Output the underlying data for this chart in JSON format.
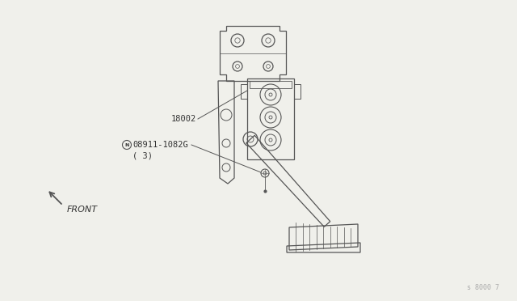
{
  "bg_color": "#f0f0eb",
  "line_color": "#555555",
  "text_color": "#333333",
  "part_label_1": "18002",
  "part_label_2": "08911-1082G",
  "part_label_2c": "( 3)",
  "front_label": "FRONT",
  "ref_code": "s 8000 7"
}
